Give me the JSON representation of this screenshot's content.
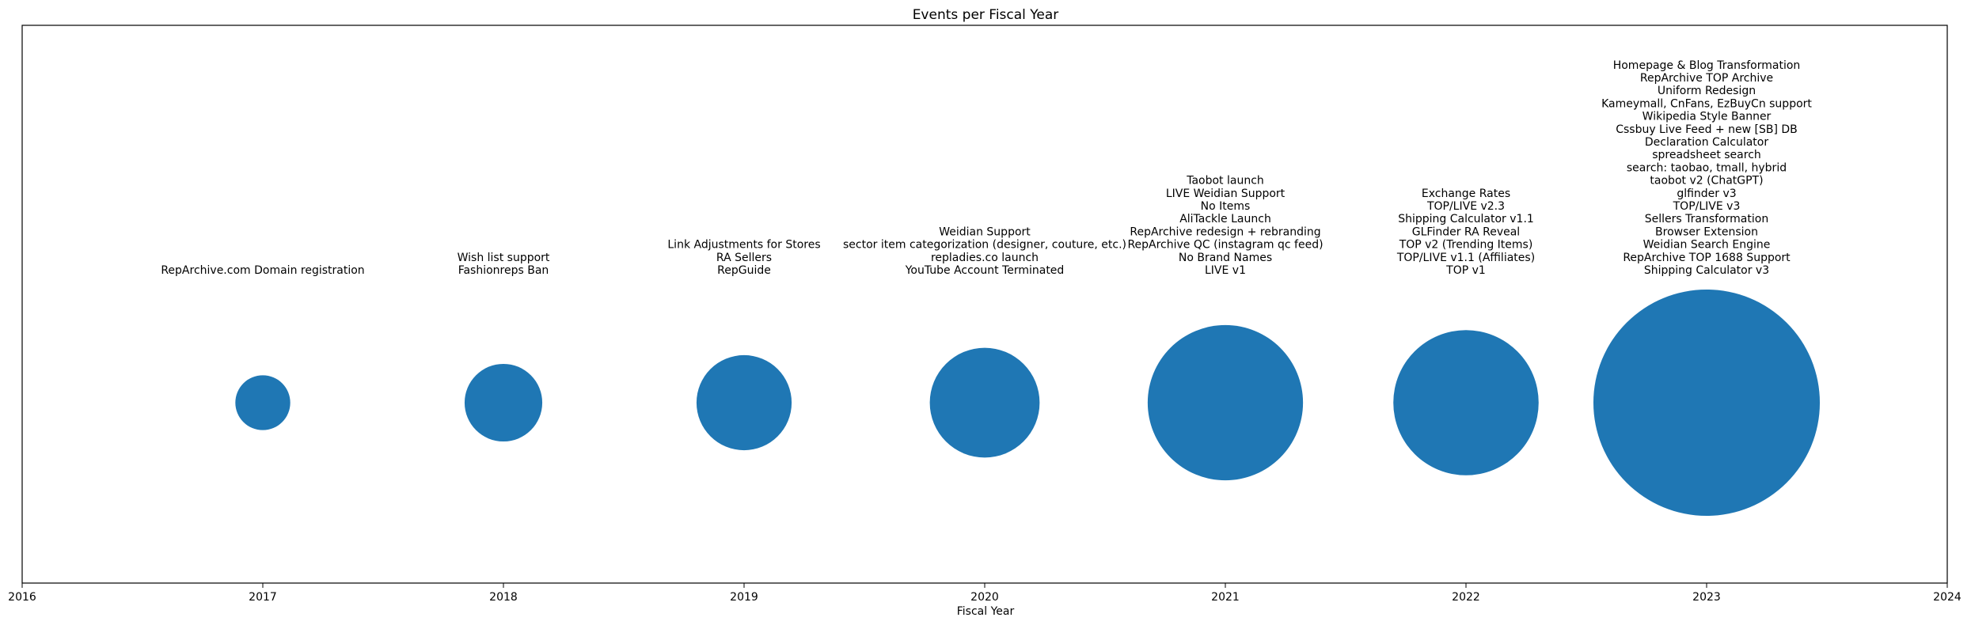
{
  "chart_data": {
    "type": "scatter",
    "title": "Events per Fiscal Year",
    "xlabel": "Fiscal Year",
    "ylabel": "",
    "xlim": [
      2016,
      2024
    ],
    "x_ticks": [
      "2016",
      "2017",
      "2018",
      "2019",
      "2020",
      "2021",
      "2022",
      "2023",
      "2024"
    ],
    "grid": false,
    "marker_shape": "circle",
    "series": [
      {
        "color": "#1f77b4",
        "points": [
          {
            "x": 2017,
            "count": 1,
            "events": [
              "RepArchive.com Domain registration"
            ]
          },
          {
            "x": 2018,
            "count": 2,
            "events": [
              "Wish list support",
              "Fashionreps Ban"
            ]
          },
          {
            "x": 2019,
            "count": 3,
            "events": [
              "Link Adjustments for Stores",
              "RA Sellers",
              "RepGuide"
            ]
          },
          {
            "x": 2020,
            "count": 4,
            "events": [
              "Weidian Support",
              "sector item categorization (designer, couture, etc.)",
              "repladies.co launch",
              "YouTube Account Terminated"
            ]
          },
          {
            "x": 2021,
            "count": 8,
            "events": [
              "Taobot launch",
              "LIVE Weidian Support",
              "No Items",
              "AliTackle Launch",
              "RepArchive redesign + rebranding",
              "RepArchive QC (instagram qc feed)",
              "No Brand Names",
              "LIVE v1"
            ]
          },
          {
            "x": 2022,
            "count": 7,
            "events": [
              "Exchange Rates",
              "TOP/LIVE v2.3",
              "Shipping Calculator v1.1",
              "GLFinder RA Reveal",
              "TOP v2 (Trending Items)",
              "TOP/LIVE v1.1 (Affiliates)",
              "TOP v1"
            ]
          },
          {
            "x": 2023,
            "count": 17,
            "events": [
              "Homepage & Blog Transformation",
              "RepArchive TOP Archive",
              "Uniform Redesign",
              "Kameymall, CnFans, EzBuyCn support",
              "Wikipedia Style Banner",
              "Cssbuy Live Feed + new [SB] DB",
              "Declaration Calculator",
              "spreadsheet search",
              "search: taobao, tmall, hybrid",
              "taobot v2 (ChatGPT)",
              "glfinder v3",
              "TOP/LIVE v3",
              "Sellers Transformation",
              "Browser Extension",
              "Weidian Search Engine",
              "RepArchive TOP 1688 Support",
              "Shipping Calculator v3"
            ]
          }
        ]
      }
    ]
  }
}
